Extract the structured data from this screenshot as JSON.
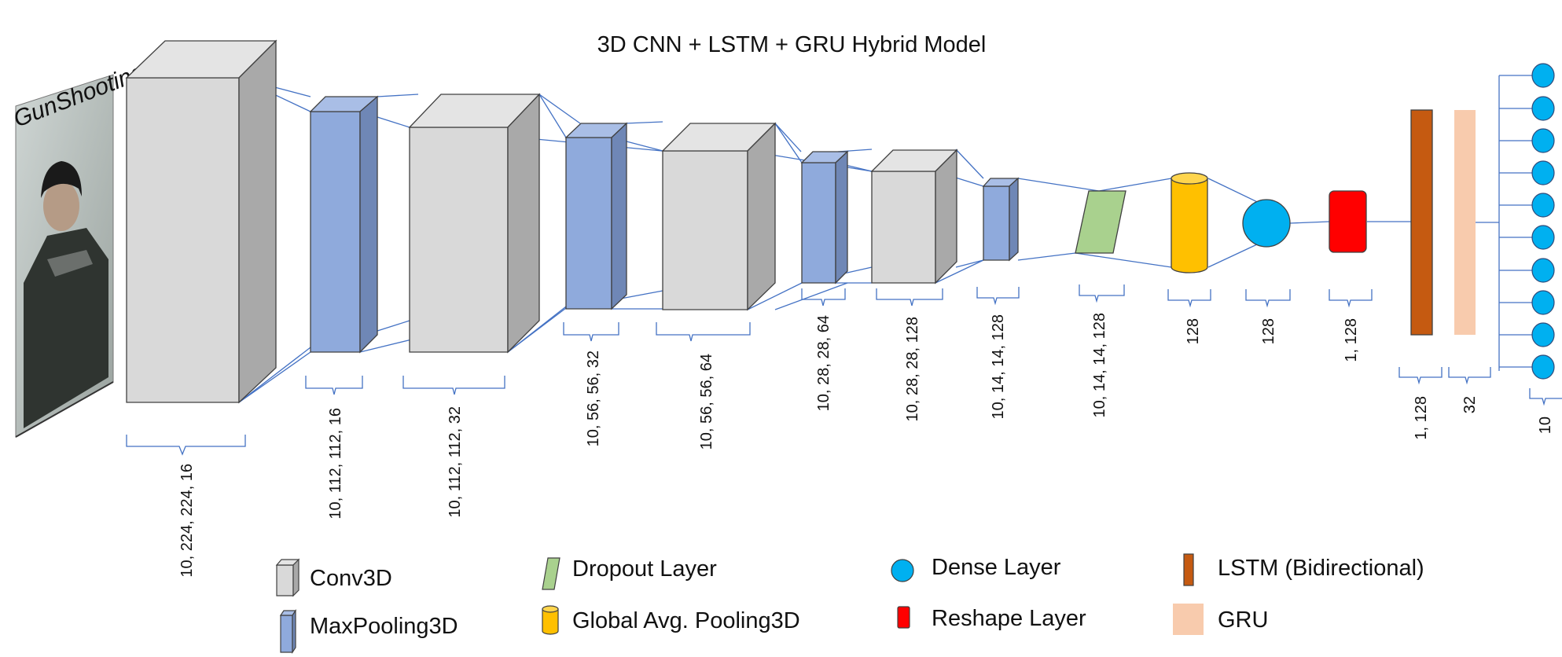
{
  "title": "3D CNN + LSTM + GRU Hybrid Model",
  "input_caption": "GunShooting",
  "colors": {
    "conv3d": "#d9d9d9",
    "maxpool3d": "#8faadc",
    "dropout": "#a9d18e",
    "global_avg_pool": "#ffc000",
    "dense": "#00b0f0",
    "reshape": "#ff0000",
    "lstm": "#c55a11",
    "gru": "#f8cbad",
    "lines": "#4472c4"
  },
  "layers": [
    {
      "type": "Conv3D",
      "shape": "10, 224, 224, 16"
    },
    {
      "type": "MaxPooling3D",
      "shape": "10, 112, 112, 16"
    },
    {
      "type": "Conv3D",
      "shape": "10, 112, 112, 32"
    },
    {
      "type": "MaxPooling3D",
      "shape": "10, 56, 56, 32"
    },
    {
      "type": "Conv3D",
      "shape": "10, 56, 56, 64"
    },
    {
      "type": "MaxPooling3D",
      "shape": "10, 28, 28, 64"
    },
    {
      "type": "Conv3D",
      "shape": "10, 28, 28, 128"
    },
    {
      "type": "MaxPooling3D",
      "shape": "10, 14, 14, 128"
    },
    {
      "type": "Dropout Layer",
      "shape": "10, 14, 14, 128"
    },
    {
      "type": "Global Avg. Pooling3D",
      "shape": "128"
    },
    {
      "type": "Dense Layer",
      "shape": "128"
    },
    {
      "type": "Reshape Layer",
      "shape": "1, 128"
    },
    {
      "type": "LSTM (Bidirectional)",
      "shape": "1, 128"
    },
    {
      "type": "GRU",
      "shape": "32"
    },
    {
      "type": "Dense Layer",
      "shape": "10"
    }
  ],
  "legend": [
    {
      "label": "Conv3D",
      "icon": "cube-icon"
    },
    {
      "label": "MaxPooling3D",
      "icon": "cube-icon"
    },
    {
      "label": "Dropout Layer",
      "icon": "parallelogram-icon"
    },
    {
      "label": "Global Avg. Pooling3D",
      "icon": "cylinder-icon"
    },
    {
      "label": "Dense Layer",
      "icon": "circle-icon"
    },
    {
      "label": "Reshape Layer",
      "icon": "rounded-rect-icon"
    },
    {
      "label": "LSTM (Bidirectional)",
      "icon": "rect-icon"
    },
    {
      "label": "GRU",
      "icon": "rect-icon"
    }
  ]
}
